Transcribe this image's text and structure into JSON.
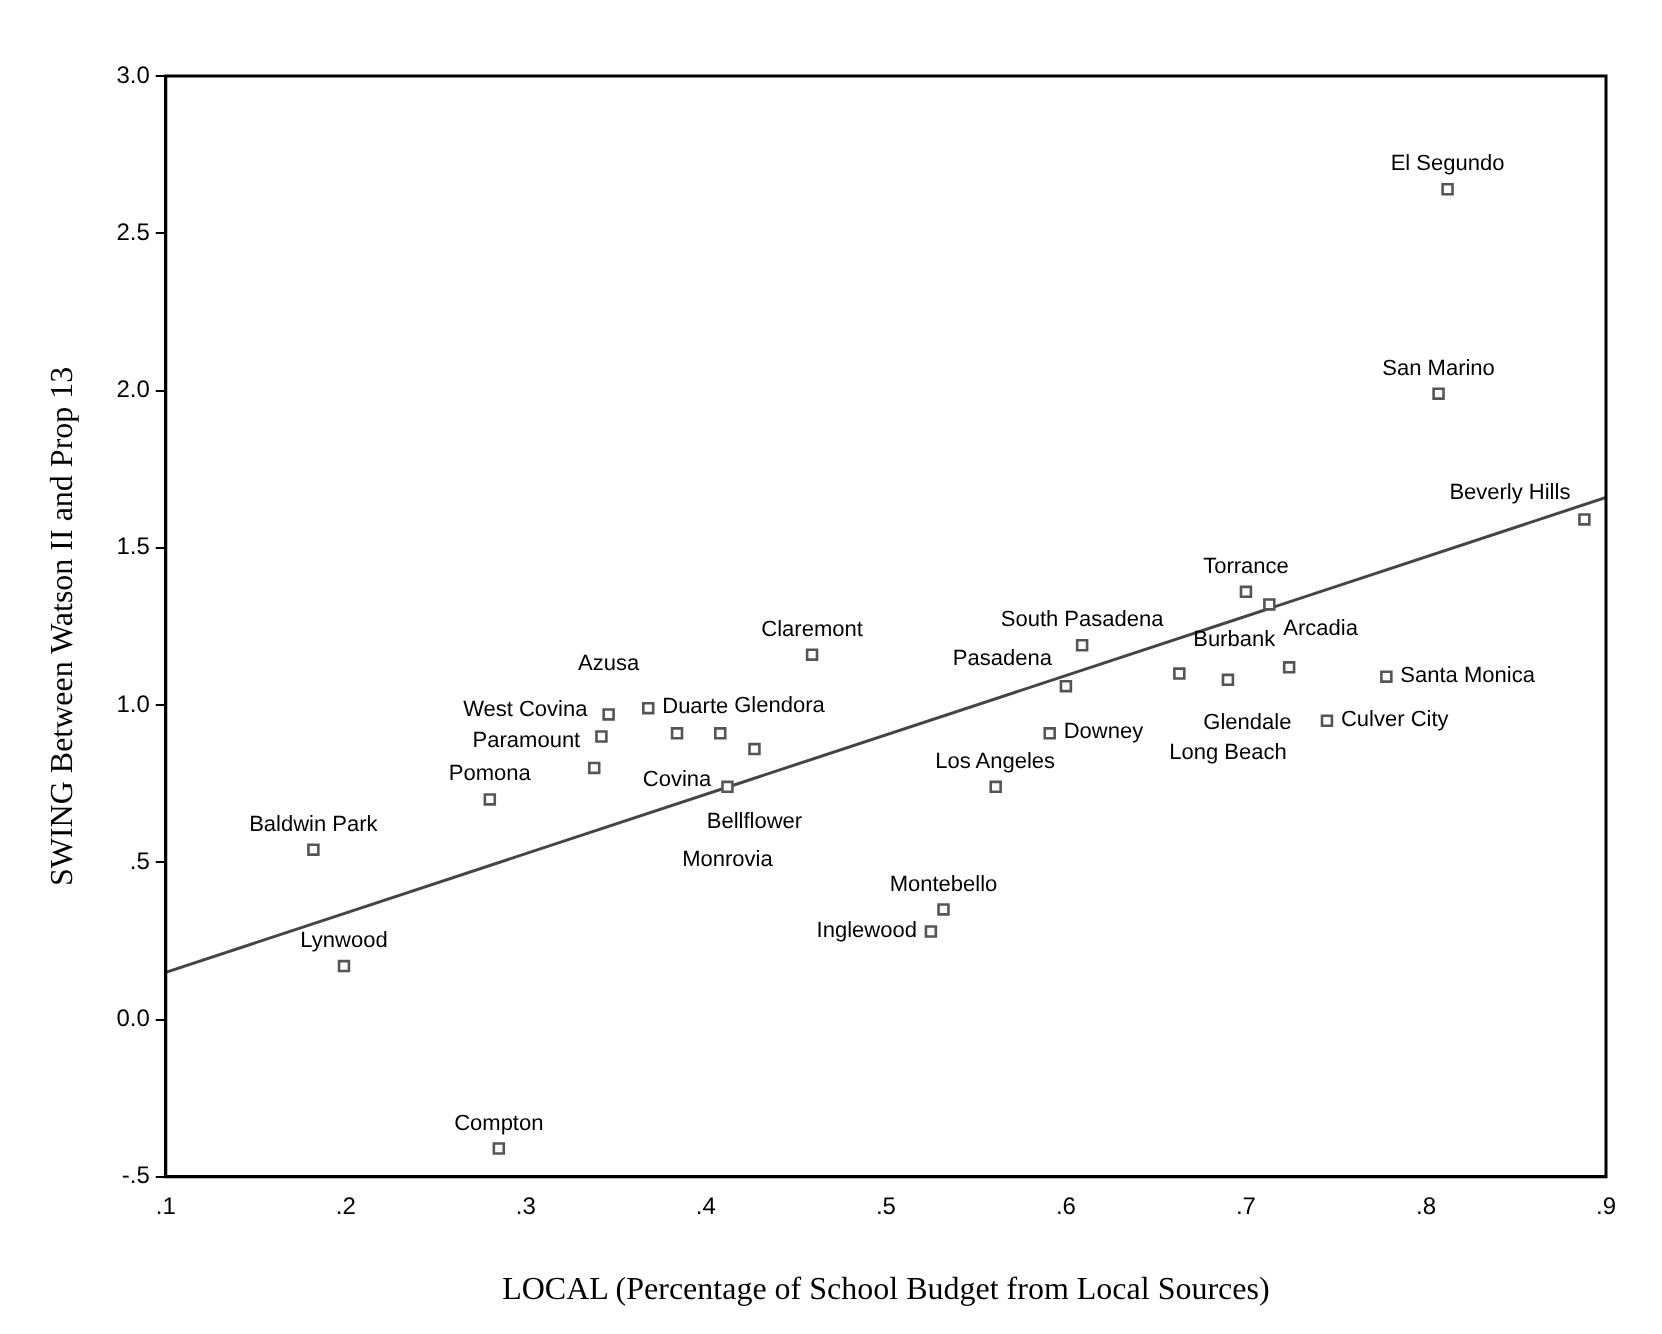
{
  "chart_data": {
    "type": "scatter",
    "xlabel": "LOCAL (Percentage of School Budget from Local Sources)",
    "ylabel": "SWING Between Watson II and Prop 13",
    "xlim": [
      0.1,
      0.9
    ],
    "xticks": [
      {
        "value": 0.1,
        "label": ".1"
      },
      {
        "value": 0.2,
        "label": ".2"
      },
      {
        "value": 0.3,
        "label": ".3"
      },
      {
        "value": 0.4,
        "label": ".4"
      },
      {
        "value": 0.5,
        "label": ".5"
      },
      {
        "value": 0.6,
        "label": ".6"
      },
      {
        "value": 0.7,
        "label": ".7"
      },
      {
        "value": 0.8,
        "label": ".8"
      },
      {
        "value": 0.9,
        "label": ".9"
      }
    ],
    "ylim": [
      -0.5,
      3
    ],
    "yticks": [
      {
        "value": -0.5,
        "label": "-.5"
      },
      {
        "value": 0,
        "label": "0.0"
      },
      {
        "value": 0.5,
        "label": ".5"
      },
      {
        "value": 1,
        "label": "1.0"
      },
      {
        "value": 1.5,
        "label": "1.5"
      },
      {
        "value": 2,
        "label": "2.0"
      },
      {
        "value": 2.5,
        "label": "2.5"
      },
      {
        "value": 3,
        "label": "3.0"
      }
    ],
    "grid": false,
    "legend": false,
    "marker": "square",
    "series": [
      {
        "type": "scatter",
        "color": "#555555",
        "x": [
          0.182,
          0.199,
          0.285,
          0.28,
          0.338,
          0.342,
          0.346,
          0.368,
          0.384,
          0.408,
          0.427,
          0.412,
          0.459,
          0.609,
          0.6,
          0.591,
          0.561,
          0.532,
          0.525,
          0.7,
          0.713,
          0.663,
          0.69,
          0.724,
          0.778,
          0.745,
          0.812,
          0.807,
          0.888
        ],
        "values": [
          0.54,
          0.17,
          -0.41,
          0.7,
          0.8,
          0.9,
          0.97,
          0.99,
          0.91,
          0.91,
          0.86,
          0.74,
          1.16,
          1.19,
          1.06,
          0.91,
          0.74,
          0.35,
          0.28,
          1.36,
          1.32,
          1.1,
          1.08,
          1.12,
          1.09,
          0.95,
          2.64,
          1.99,
          1.59
        ]
      },
      {
        "type": "line",
        "color": "#444444",
        "marker": "none",
        "x": [
          0.1,
          0.9
        ],
        "values": [
          0.15,
          1.66
        ]
      }
    ],
    "annotations": [
      {
        "text": "Baldwin Park",
        "x": 0.182,
        "y": 0.54
      },
      {
        "text": "Lynwood",
        "x": 0.199,
        "y": 0.17
      },
      {
        "text": "Compton",
        "x": 0.285,
        "y": -0.41
      },
      {
        "text": "Pomona",
        "x": 0.28,
        "y": 0.7
      },
      {
        "text": "Paramount",
        "x": 0.338,
        "y": 0.8
      },
      {
        "text": "West Covina",
        "x": 0.342,
        "y": 0.9
      },
      {
        "text": "Azusa",
        "x": 0.346,
        "y": 0.97
      },
      {
        "text": "Duarte",
        "x": 0.368,
        "y": 0.99
      },
      {
        "text": "Covina",
        "x": 0.384,
        "y": 0.91
      },
      {
        "text": "Glendora",
        "x": 0.408,
        "y": 0.91
      },
      {
        "text": "Bellflower",
        "x": 0.427,
        "y": 0.86
      },
      {
        "text": "Monrovia",
        "x": 0.412,
        "y": 0.74
      },
      {
        "text": "Claremont",
        "x": 0.459,
        "y": 1.16
      },
      {
        "text": "South Pasadena",
        "x": 0.609,
        "y": 1.19
      },
      {
        "text": "Pasadena",
        "x": 0.6,
        "y": 1.06
      },
      {
        "text": "Downey",
        "x": 0.591,
        "y": 0.91
      },
      {
        "text": "Los Angeles",
        "x": 0.561,
        "y": 0.74
      },
      {
        "text": "Montebello",
        "x": 0.532,
        "y": 0.35
      },
      {
        "text": "Inglewood",
        "x": 0.525,
        "y": 0.28
      },
      {
        "text": "Torrance",
        "x": 0.7,
        "y": 1.36
      },
      {
        "text": "Arcadia",
        "x": 0.713,
        "y": 1.32
      },
      {
        "text": "Glendale",
        "x": 0.663,
        "y": 1.1
      },
      {
        "text": "Long Beach",
        "x": 0.69,
        "y": 1.08
      },
      {
        "text": "Burbank",
        "x": 0.724,
        "y": 1.12
      },
      {
        "text": "Santa Monica",
        "x": 0.778,
        "y": 1.09
      },
      {
        "text": "Culver City",
        "x": 0.745,
        "y": 0.95
      },
      {
        "text": "El Segundo",
        "x": 0.812,
        "y": 2.64
      },
      {
        "text": "San Marino",
        "x": 0.807,
        "y": 1.99
      },
      {
        "text": "Beverly Hills",
        "x": 0.888,
        "y": 1.59
      }
    ]
  }
}
